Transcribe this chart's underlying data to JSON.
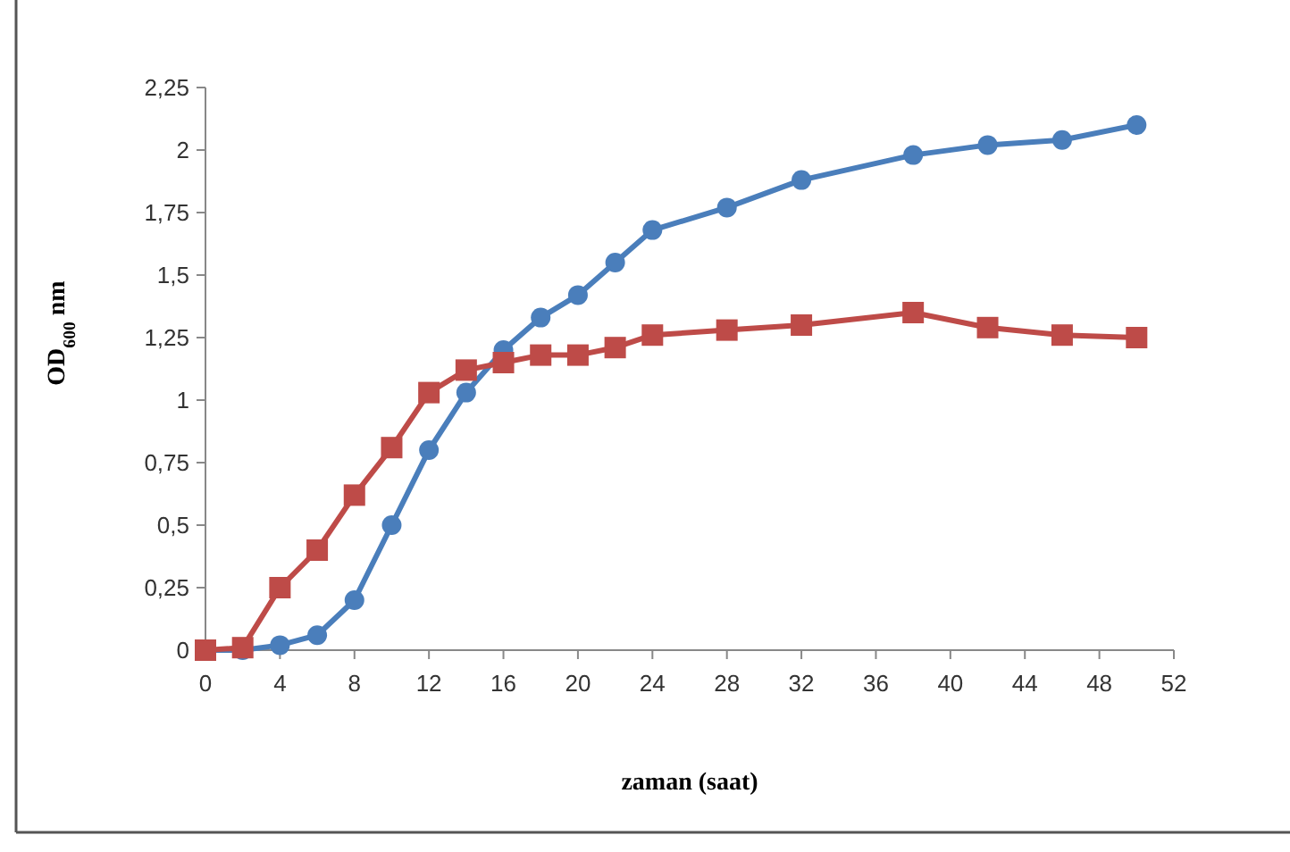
{
  "chart_data": {
    "type": "line",
    "xlabel": "zaman (saat)",
    "ylabel": "OD$_{600}$ nm",
    "xlim": [
      0,
      52
    ],
    "xticks": [
      0,
      4,
      8,
      12,
      16,
      20,
      24,
      28,
      32,
      36,
      40,
      44,
      48,
      52
    ],
    "ylim": [
      0,
      2.25
    ],
    "yticks": [
      0,
      {
        "value": 0.25,
        "label": "0,25"
      },
      {
        "value": 0.5,
        "label": "0,5"
      },
      {
        "value": 0.75,
        "label": "0,75"
      },
      1,
      {
        "value": 1.25,
        "label": "1,25"
      },
      {
        "value": 1.5,
        "label": "1,5"
      },
      {
        "value": 1.75,
        "label": "1,75"
      },
      2,
      {
        "value": 2.25,
        "label": "2,25"
      }
    ],
    "grid": false,
    "line_style": "solid",
    "series": [
      {
        "color": "#4a7ebb",
        "marker": "circle",
        "x": [
          0,
          2,
          4,
          6,
          8,
          10,
          12,
          14,
          16,
          18,
          20,
          22,
          24,
          28,
          32,
          38,
          42,
          46,
          50
        ],
        "values": [
          0,
          0,
          0.02,
          0.06,
          0.2,
          0.5,
          0.8,
          1.03,
          1.2,
          1.33,
          1.42,
          1.55,
          1.68,
          1.77,
          1.88,
          1.98,
          2.02,
          2.04,
          2.1
        ]
      },
      {
        "color": "#be4b48",
        "marker": "square",
        "x": [
          0,
          2,
          4,
          6,
          8,
          10,
          12,
          14,
          16,
          18,
          20,
          22,
          24,
          28,
          32,
          38,
          42,
          46,
          50
        ],
        "values": [
          0,
          0.01,
          0.25,
          0.4,
          0.62,
          0.81,
          1.03,
          1.12,
          1.15,
          1.18,
          1.18,
          1.21,
          1.26,
          1.28,
          1.3,
          1.35,
          1.29,
          1.26,
          1.25
        ]
      }
    ]
  }
}
